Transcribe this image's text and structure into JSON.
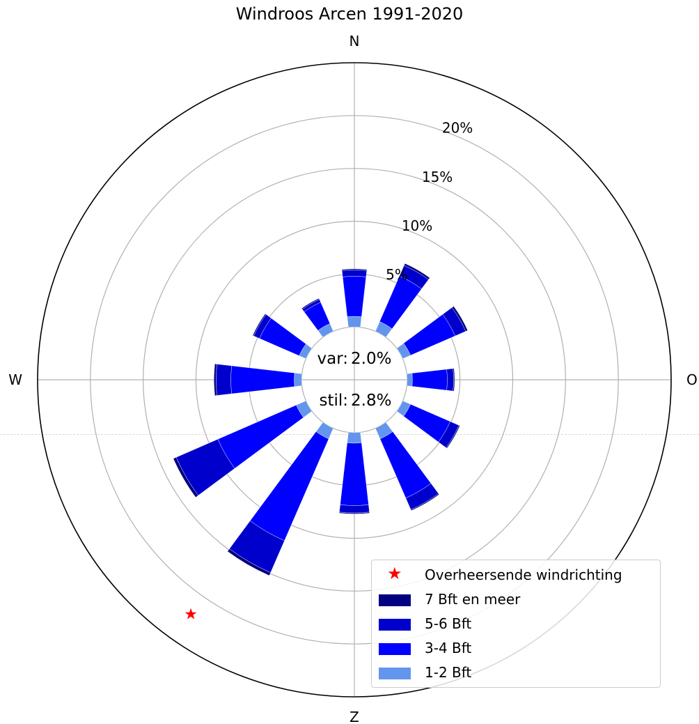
{
  "chart_data": {
    "type": "windrose",
    "title": "Windroos Arcen 1991-2020",
    "compass": {
      "north": "N",
      "east": "O",
      "south": "Z",
      "west": "W"
    },
    "center_labels": {
      "var_label": "var:",
      "var_value": "2.0%",
      "stil_label": "stil:",
      "stil_value": "2.8%"
    },
    "r_ticks": [
      5,
      10,
      15,
      20
    ],
    "r_tick_labels": [
      "5%",
      "10%",
      "15%",
      "20%"
    ],
    "r_max": 25,
    "r_offset": 5,
    "directions_deg": [
      0,
      30,
      60,
      90,
      120,
      150,
      180,
      210,
      240,
      270,
      300,
      330
    ],
    "series": [
      {
        "name": "1-2 Bft",
        "color": "#6495ed",
        "values": [
          1.0,
          1.0,
          0.8,
          0.5,
          0.8,
          1.1,
          1.0,
          1.1,
          1.0,
          0.7,
          0.7,
          0.8
        ]
      },
      {
        "name": "3-4 Bft",
        "color": "#0000ff",
        "values": [
          3.8,
          4.7,
          4.6,
          3.3,
          4.1,
          6.1,
          5.9,
          10.5,
          8.1,
          6.0,
          4.1,
          2.2
        ]
      },
      {
        "name": "5-6 Bft",
        "color": "#0000cd",
        "values": [
          0.6,
          1.1,
          1.1,
          0.6,
          0.9,
          1.2,
          0.7,
          3.3,
          4.3,
          1.4,
          0.6,
          0.3
        ]
      },
      {
        "name": "7 Bft en meer",
        "color": "#000080",
        "values": [
          0.1,
          0.2,
          0.2,
          0.1,
          0.1,
          0.1,
          0.1,
          0.3,
          0.3,
          0.2,
          0.1,
          0.1
        ]
      }
    ],
    "prevailing_direction_deg": 210,
    "legend": {
      "prevailing_label": "Overheersende windrichting",
      "items": [
        "7 Bft en meer",
        "5-6 Bft",
        "3-4 Bft",
        "1-2 Bft"
      ],
      "colors": [
        "#000080",
        "#0000cd",
        "#0000ff",
        "#6495ed"
      ],
      "star_color": "#ff0000",
      "placement": "lower-right"
    }
  }
}
